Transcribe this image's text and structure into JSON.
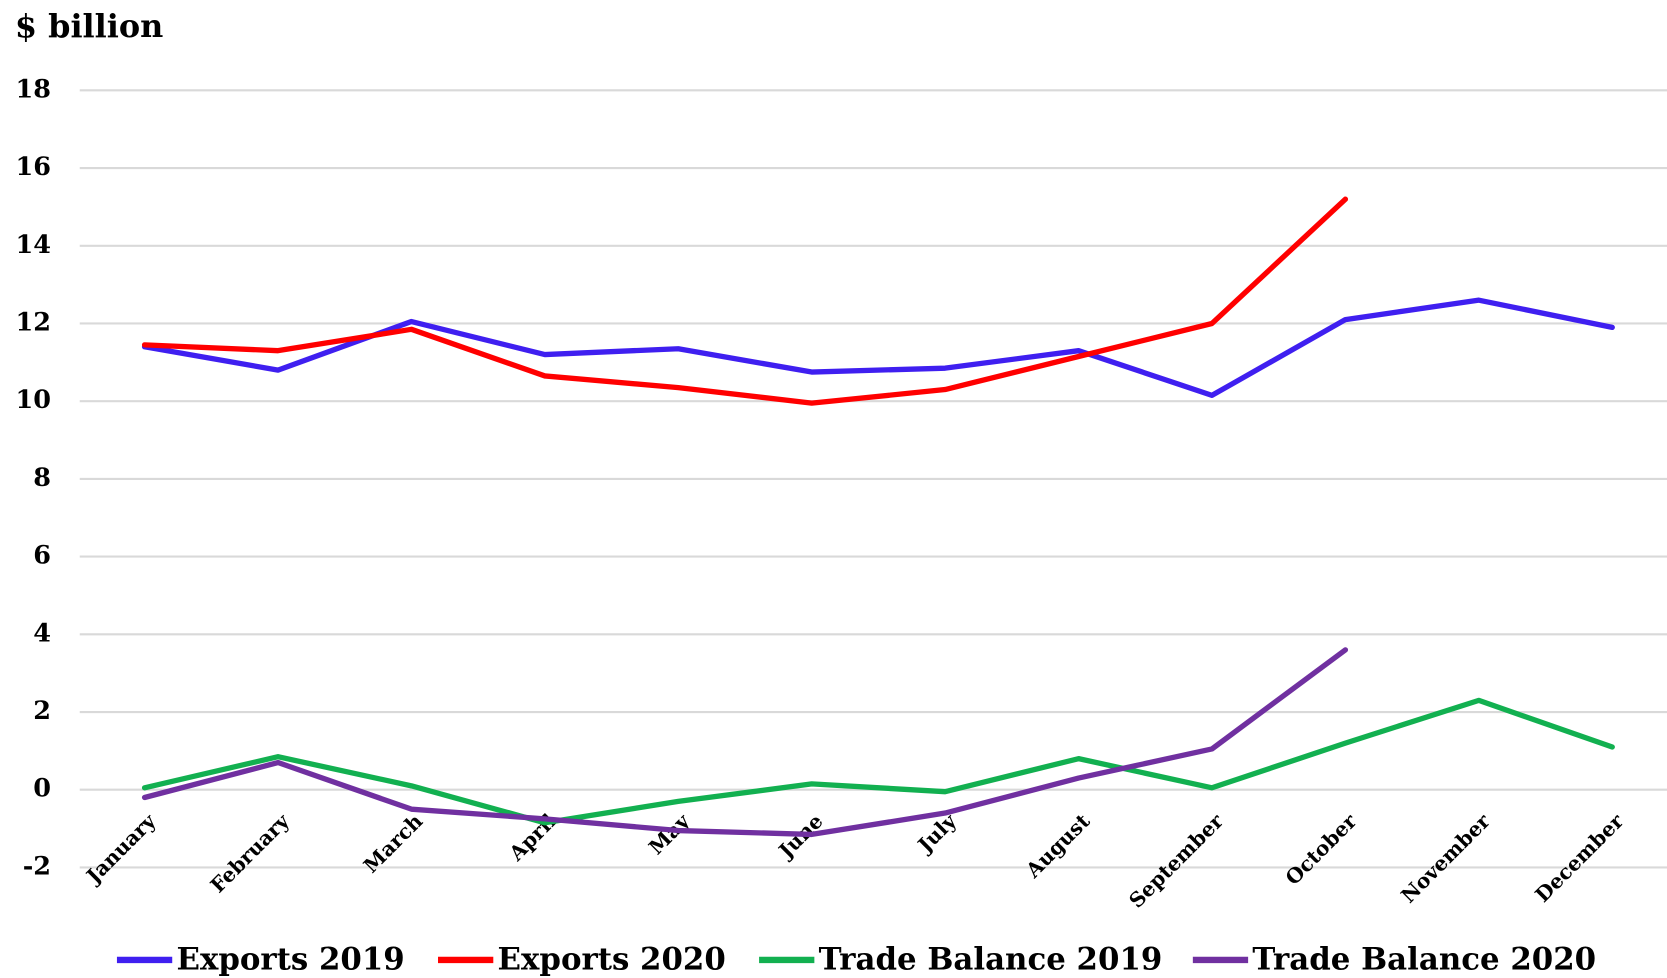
{
  "chart_data": {
    "type": "line",
    "title": "$ billion",
    "categories": [
      "January",
      "February",
      "March",
      "April",
      "May",
      "June",
      "July",
      "August",
      "September",
      "October",
      "November",
      "December"
    ],
    "series": [
      {
        "name": "Exports 2019",
        "color": "#3f1ff0",
        "values": [
          11.4,
          10.8,
          12.05,
          11.2,
          11.35,
          10.75,
          10.85,
          11.3,
          10.15,
          12.1,
          12.6,
          11.9
        ]
      },
      {
        "name": "Exports 2020",
        "color": "#ff0000",
        "values": [
          11.45,
          11.3,
          11.85,
          10.65,
          10.35,
          9.95,
          10.3,
          11.15,
          12.0,
          15.2,
          null,
          null
        ]
      },
      {
        "name": "Trade Balance 2019",
        "color": "#12b050",
        "values": [
          0.05,
          0.85,
          0.1,
          -0.85,
          -0.3,
          0.15,
          -0.05,
          0.8,
          0.05,
          1.2,
          2.3,
          1.1
        ]
      },
      {
        "name": "Trade Balance 2020",
        "color": "#7030a0",
        "values": [
          -0.2,
          0.7,
          -0.5,
          -0.75,
          -1.05,
          -1.15,
          -0.6,
          0.3,
          1.05,
          3.6,
          null,
          null
        ]
      }
    ],
    "ylim": [
      -2,
      18
    ],
    "yticks": [
      -2,
      0,
      2,
      4,
      6,
      8,
      10,
      12,
      14,
      16,
      18
    ],
    "grid": true,
    "legend": "bottom"
  }
}
